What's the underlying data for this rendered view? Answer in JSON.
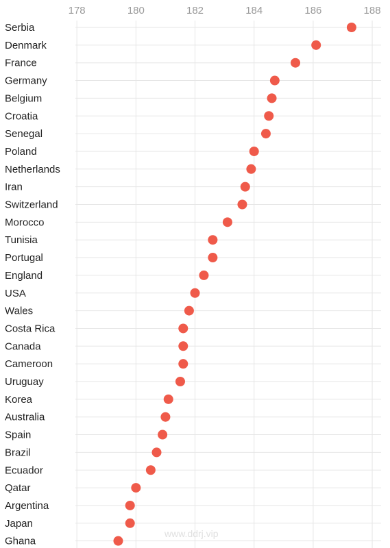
{
  "chart_data": {
    "type": "scatter",
    "categories": [
      "Serbia",
      "Denmark",
      "France",
      "Germany",
      "Belgium",
      "Croatia",
      "Senegal",
      "Poland",
      "Netherlands",
      "Iran",
      "Switzerland",
      "Morocco",
      "Tunisia",
      "Portugal",
      "England",
      "USA",
      "Wales",
      "Costa Rica",
      "Canada",
      "Cameroon",
      "Uruguay",
      "Korea",
      "Australia",
      "Spain",
      "Brazil",
      "Ecuador",
      "Qatar",
      "Argentina",
      "Japan",
      "Ghana"
    ],
    "values": [
      187.3,
      186.1,
      185.4,
      184.7,
      184.6,
      184.5,
      184.4,
      184.0,
      183.9,
      183.7,
      183.6,
      183.1,
      182.6,
      182.6,
      182.3,
      182.0,
      181.8,
      181.6,
      181.6,
      181.6,
      181.5,
      181.1,
      181.0,
      180.9,
      180.7,
      180.5,
      180.0,
      179.8,
      179.8,
      179.4
    ],
    "x_ticks": [
      178,
      180,
      182,
      184,
      186,
      188
    ],
    "xlim": [
      177.95,
      188.3
    ],
    "title": "",
    "xlabel": "",
    "ylabel": "",
    "grid": true,
    "colors": {
      "point": "#ef5a4a",
      "grid": "#e6e6e6"
    }
  },
  "watermark": "www.ddrj.vip"
}
